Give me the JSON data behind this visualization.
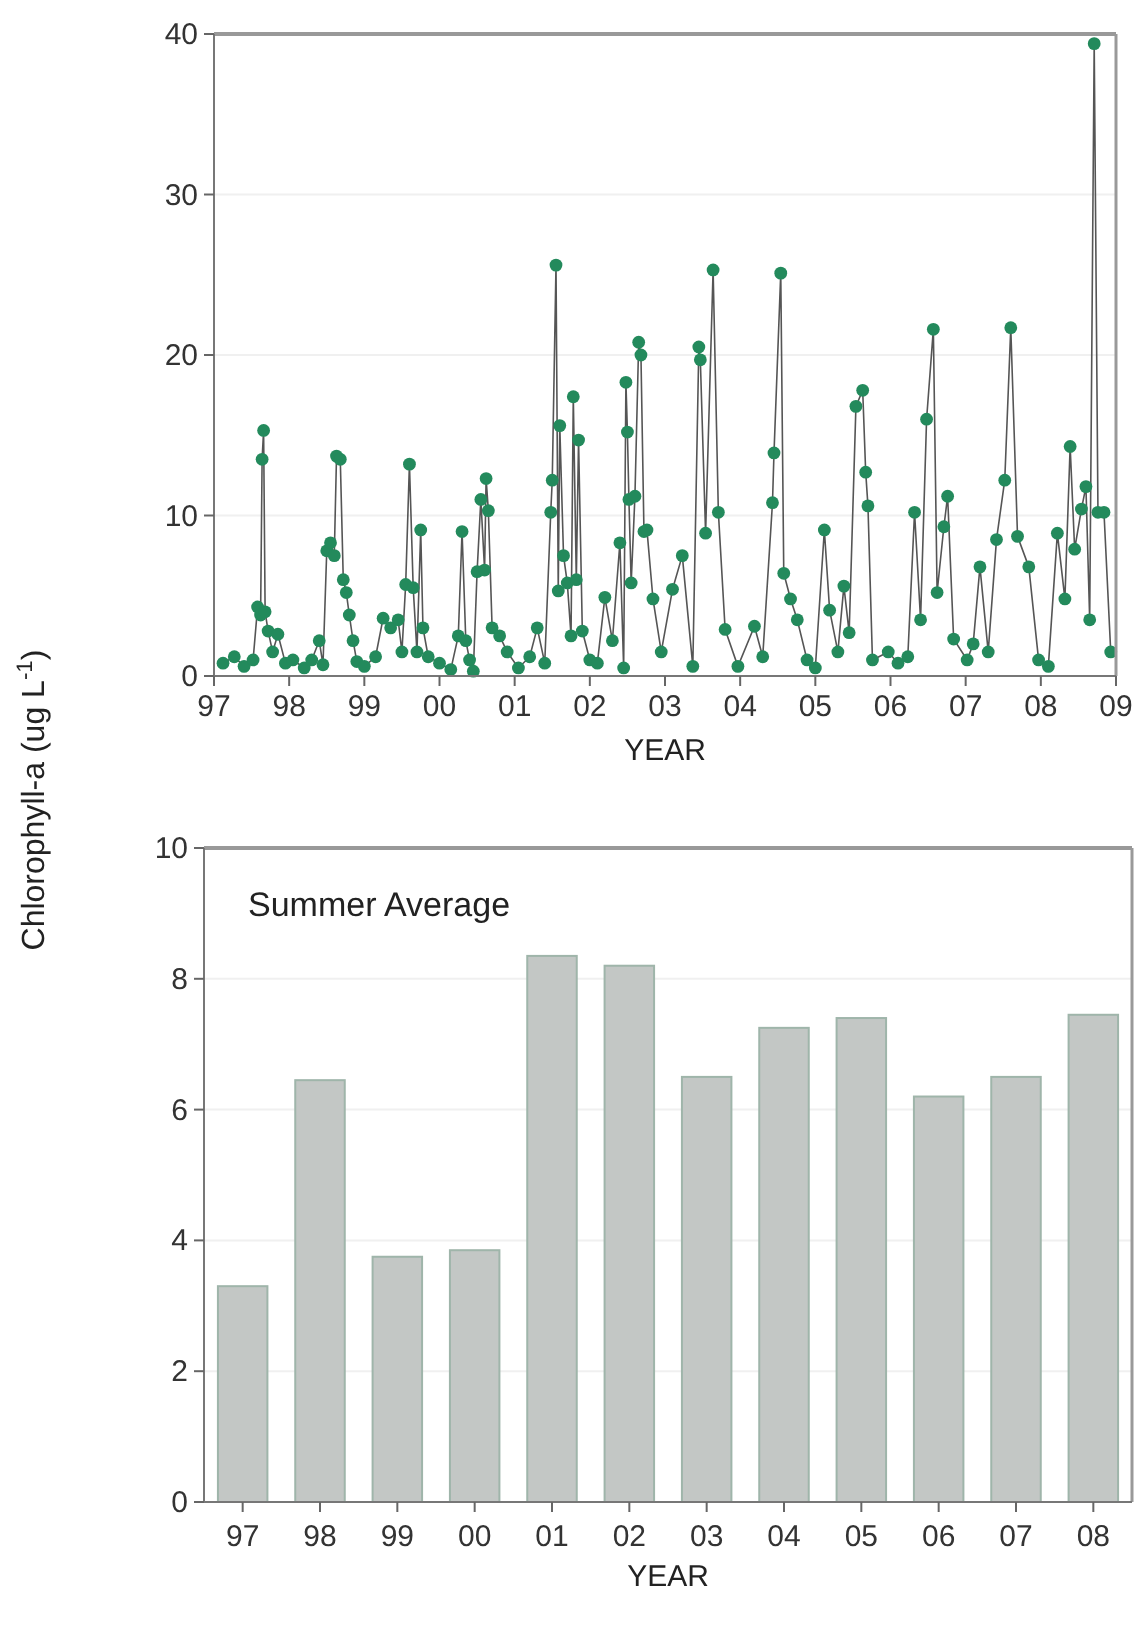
{
  "chart_data": [
    {
      "type": "line",
      "ylabel": "Chlorophyll-a (ug L$^{-1}$)",
      "xlabel": "YEAR",
      "xlim": [
        1997,
        2009
      ],
      "ylim": [
        0,
        40
      ],
      "yticks": [
        0,
        10,
        20,
        30,
        40
      ],
      "xticks": [
        {
          "value": 1997,
          "label": "97"
        },
        {
          "value": 1998,
          "label": "98"
        },
        {
          "value": 1999,
          "label": "99"
        },
        {
          "value": 2000,
          "label": "00"
        },
        {
          "value": 2001,
          "label": "01"
        },
        {
          "value": 2002,
          "label": "02"
        },
        {
          "value": 2003,
          "label": "03"
        },
        {
          "value": 2004,
          "label": "04"
        },
        {
          "value": 2005,
          "label": "05"
        },
        {
          "value": 2006,
          "label": "06"
        },
        {
          "value": 2007,
          "label": "07"
        },
        {
          "value": 2008,
          "label": "08"
        },
        {
          "value": 2009,
          "label": "09"
        }
      ],
      "grid": "y",
      "marker": "circle",
      "line_style": "solid",
      "series": [
        {
          "color": "#238a5c",
          "x": [
            1997.12,
            1997.27,
            1997.4,
            1997.52,
            1997.58,
            1997.62,
            1997.64,
            1997.66,
            1997.68,
            1997.72,
            1997.78,
            1997.85,
            1997.95,
            1998.05,
            1998.2,
            1998.3,
            1998.4,
            1998.45,
            1998.5,
            1998.55,
            1998.6,
            1998.63,
            1998.68,
            1998.72,
            1998.76,
            1998.8,
            1998.85,
            1998.9,
            1999.0,
            1999.15,
            1999.25,
            1999.35,
            1999.45,
            1999.5,
            1999.55,
            1999.6,
            1999.65,
            1999.7,
            1999.75,
            1999.78,
            1999.85,
            2000.0,
            2000.15,
            2000.25,
            2000.3,
            2000.35,
            2000.4,
            2000.45,
            2000.5,
            2000.55,
            2000.6,
            2000.62,
            2000.65,
            2000.7,
            2000.8,
            2000.9,
            2001.05,
            2001.2,
            2001.3,
            2001.4,
            2001.48,
            2001.5,
            2001.55,
            2001.58,
            2001.6,
            2001.65,
            2001.7,
            2001.75,
            2001.78,
            2001.82,
            2001.85,
            2001.9,
            2002.0,
            2002.1,
            2002.2,
            2002.3,
            2002.4,
            2002.45,
            2002.48,
            2002.5,
            2002.52,
            2002.55,
            2002.6,
            2002.65,
            2002.68,
            2002.72,
            2002.76,
            2002.84,
            2002.95,
            2003.1,
            2003.23,
            2003.37,
            2003.45,
            2003.47,
            2003.54,
            2003.64,
            2003.71,
            2003.8,
            2003.97,
            2004.19,
            2004.3,
            2004.43,
            2004.45,
            2004.54,
            2004.58,
            2004.67,
            2004.76,
            2004.89,
            2005.0,
            2005.12,
            2005.19,
            2005.3,
            2005.38,
            2005.45,
            2005.54,
            2005.63,
            2005.67,
            2005.7,
            2005.76,
            2005.97,
            2006.1,
            2006.23,
            2006.32,
            2006.4,
            2006.48,
            2006.57,
            2006.62,
            2006.71,
            2006.76,
            2006.84,
            2007.02,
            2007.1,
            2007.19,
            2007.3,
            2007.41,
            2007.52,
            2007.6,
            2007.69,
            2007.84,
            2007.97,
            2008.1,
            2008.22,
            2008.32,
            2008.39,
            2008.45,
            2008.54,
            2008.6,
            2008.65,
            2008.71,
            2008.76,
            2008.84,
            2008.93
          ],
          "values": [
            0.8,
            1.2,
            0.6,
            1.0,
            4.3,
            3.8,
            13.5,
            15.3,
            4.0,
            2.8,
            1.5,
            2.6,
            0.8,
            1.0,
            0.5,
            1.0,
            2.2,
            0.7,
            7.8,
            8.3,
            7.5,
            13.7,
            13.5,
            6.0,
            5.2,
            3.8,
            2.2,
            0.9,
            0.6,
            1.2,
            3.6,
            3.0,
            3.5,
            1.5,
            5.7,
            13.2,
            5.5,
            1.5,
            9.1,
            3.0,
            1.2,
            0.8,
            0.4,
            2.5,
            9.0,
            2.2,
            1.0,
            0.3,
            6.5,
            11.0,
            6.6,
            12.3,
            10.3,
            3.0,
            2.5,
            1.5,
            0.5,
            1.2,
            3.0,
            0.8,
            10.2,
            12.2,
            25.6,
            5.3,
            15.6,
            7.5,
            5.8,
            2.5,
            17.4,
            6.0,
            14.7,
            2.8,
            1.0,
            0.8,
            4.9,
            2.2,
            8.3,
            0.5,
            18.3,
            15.2,
            11.0,
            5.8,
            11.2,
            20.8,
            20.0,
            9.0,
            9.1,
            4.8,
            1.5,
            5.4,
            7.5,
            0.6,
            20.5,
            19.7,
            8.9,
            25.3,
            10.2,
            2.9,
            0.6,
            3.1,
            1.2,
            10.8,
            13.9,
            25.1,
            6.4,
            4.8,
            3.5,
            1.0,
            0.5,
            9.1,
            4.1,
            1.5,
            5.6,
            2.7,
            16.8,
            17.8,
            12.7,
            10.6,
            1.0,
            1.5,
            0.8,
            1.2,
            10.2,
            3.5,
            16.0,
            21.6,
            5.2,
            9.3,
            11.2,
            2.3,
            1.0,
            2.0,
            6.8,
            1.5,
            8.5,
            12.2,
            21.7,
            8.7,
            6.8,
            1.0,
            0.6,
            8.9,
            4.8,
            14.3,
            7.9,
            10.4,
            11.8,
            3.5,
            39.4,
            10.2,
            10.2,
            1.5
          ]
        }
      ]
    },
    {
      "type": "bar",
      "xlabel": "YEAR",
      "categories": [
        "97",
        "98",
        "99",
        "00",
        "01",
        "02",
        "03",
        "04",
        "05",
        "06",
        "07",
        "08"
      ],
      "values": [
        3.3,
        6.45,
        3.75,
        3.85,
        8.35,
        8.2,
        6.5,
        7.25,
        7.4,
        6.2,
        6.5,
        7.45
      ],
      "color": "#c3c7c5",
      "ylim": [
        0,
        10
      ],
      "yticks": [
        0,
        2,
        4,
        6,
        8,
        10
      ],
      "grid": "y",
      "annotations": [
        "Summer Average"
      ]
    }
  ]
}
